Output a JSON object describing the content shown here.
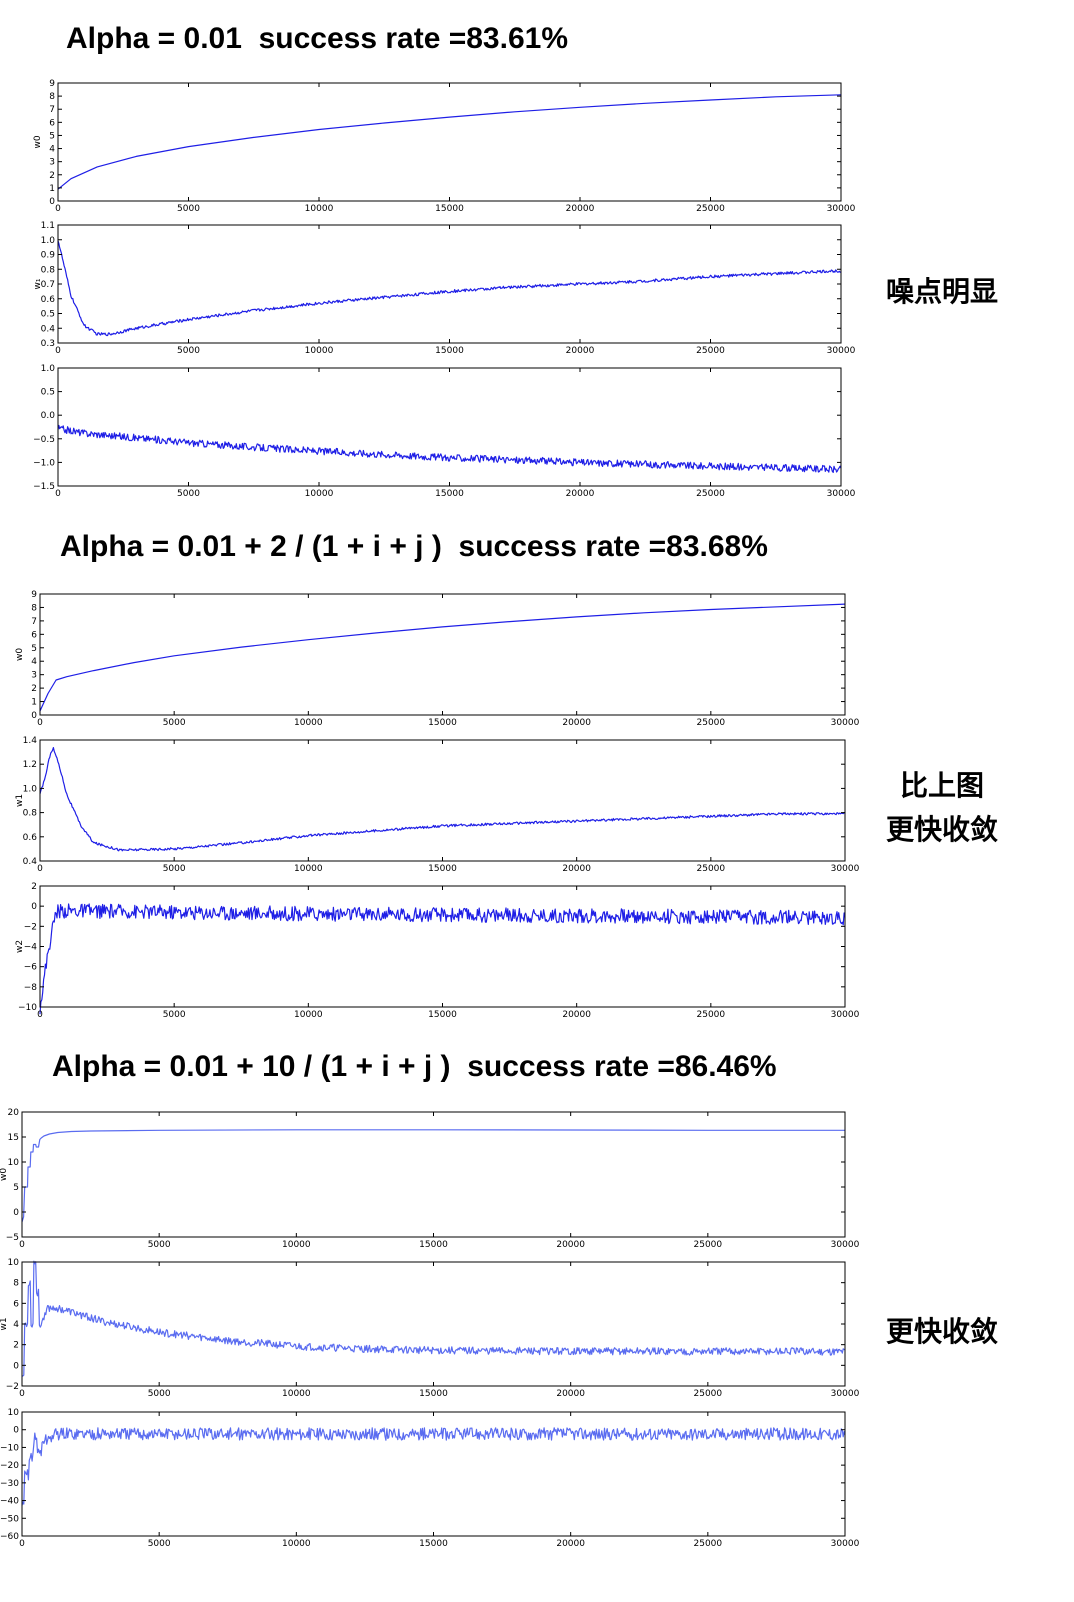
{
  "sections": [
    {
      "title": "Alpha = 0.01  success rate =83.61%"
    },
    {
      "title": "Alpha = 0.01 + 2 / (1 + i + j )  success rate =83.68%"
    },
    {
      "title": "Alpha = 0.01 + 10 / (1 + i + j )  success rate =86.46%"
    }
  ],
  "notes": {
    "n1": "噪点明显",
    "n2a": "比上图",
    "n2b": "更快收敛",
    "n3": "更快收敛"
  },
  "colors": {
    "line": "#1f1fe6",
    "line_light": "#5a6cf0"
  },
  "chart_data": [
    {
      "type": "line",
      "ylabel": "w0",
      "xlim": [
        0,
        30000
      ],
      "ylim": [
        0,
        9
      ],
      "xticks": [
        0,
        5000,
        10000,
        15000,
        20000,
        25000,
        30000
      ],
      "yticks": [
        0,
        1,
        2,
        3,
        4,
        5,
        6,
        7,
        8,
        9
      ],
      "ytick_labels": [
        "0",
        "1",
        "2",
        "3",
        "4",
        "5",
        "6",
        "7",
        "8",
        "9"
      ],
      "x": [
        0,
        500,
        1500,
        3000,
        5000,
        7500,
        10000,
        12500,
        15000,
        17500,
        20000,
        22500,
        25000,
        27500,
        30000
      ],
      "y": [
        0.9,
        1.7,
        2.6,
        3.4,
        4.15,
        4.85,
        5.45,
        5.95,
        6.4,
        6.8,
        7.15,
        7.45,
        7.7,
        7.95,
        8.1
      ],
      "noise": 0
    },
    {
      "type": "line",
      "ylabel": "w₁",
      "xlim": [
        0,
        30000
      ],
      "ylim": [
        0.3,
        1.1
      ],
      "xticks": [
        0,
        5000,
        10000,
        15000,
        20000,
        25000,
        30000
      ],
      "yticks": [
        0.3,
        0.4,
        0.5,
        0.6,
        0.7,
        0.8,
        0.9,
        1.0,
        1.1
      ],
      "ytick_labels": [
        "0.3",
        "0.4",
        "0.5",
        "0.6",
        "0.7",
        "0.8",
        "0.9",
        "1.0",
        "1.1"
      ],
      "x": [
        0,
        200,
        500,
        1000,
        1500,
        2000,
        3000,
        5000,
        7500,
        10000,
        12500,
        15000,
        17500,
        20000,
        22500,
        25000,
        27500,
        30000
      ],
      "y": [
        1.0,
        0.85,
        0.62,
        0.42,
        0.36,
        0.36,
        0.4,
        0.46,
        0.52,
        0.57,
        0.61,
        0.65,
        0.68,
        0.7,
        0.72,
        0.75,
        0.77,
        0.79
      ],
      "noise": 0.012
    },
    {
      "type": "line",
      "ylabel": "",
      "xlim": [
        0,
        30000
      ],
      "ylim": [
        -1.5,
        1.0
      ],
      "xticks": [
        0,
        5000,
        10000,
        15000,
        20000,
        25000,
        30000
      ],
      "yticks": [
        -1.5,
        -1.0,
        -0.5,
        0.0,
        0.5,
        1.0
      ],
      "ytick_labels": [
        "−1.5",
        "−1.0",
        "−0.5",
        "0.0",
        "0.5",
        "1.0"
      ],
      "x": [
        0,
        1000,
        3000,
        5000,
        7500,
        10000,
        12500,
        15000,
        17500,
        20000,
        22500,
        25000,
        27500,
        30000
      ],
      "y": [
        -0.28,
        -0.38,
        -0.48,
        -0.58,
        -0.68,
        -0.76,
        -0.83,
        -0.9,
        -0.95,
        -1.0,
        -1.04,
        -1.08,
        -1.11,
        -1.15
      ],
      "noise": 0.03
    },
    {
      "type": "line",
      "ylabel": "w0",
      "xlim": [
        0,
        30000
      ],
      "ylim": [
        0,
        9
      ],
      "xticks": [
        0,
        5000,
        10000,
        15000,
        20000,
        25000,
        30000
      ],
      "yticks": [
        0,
        1,
        2,
        3,
        4,
        5,
        6,
        7,
        8,
        9
      ],
      "ytick_labels": [
        "0",
        "1",
        "2",
        "3",
        "4",
        "5",
        "6",
        "7",
        "8",
        "9"
      ],
      "x": [
        0,
        300,
        600,
        1000,
        2000,
        3500,
        5000,
        7500,
        10000,
        12500,
        15000,
        17500,
        20000,
        22500,
        25000,
        27500,
        30000
      ],
      "y": [
        0.3,
        1.6,
        2.6,
        2.85,
        3.3,
        3.9,
        4.4,
        5.05,
        5.6,
        6.1,
        6.55,
        6.95,
        7.3,
        7.6,
        7.85,
        8.05,
        8.25
      ],
      "noise": 0
    },
    {
      "type": "line",
      "ylabel": "w1",
      "xlim": [
        0,
        30000
      ],
      "ylim": [
        0.4,
        1.4
      ],
      "xticks": [
        0,
        5000,
        10000,
        15000,
        20000,
        25000,
        30000
      ],
      "yticks": [
        0.4,
        0.6,
        0.8,
        1.0,
        1.2,
        1.4
      ],
      "ytick_labels": [
        "0.4",
        "0.6",
        "0.8",
        "1.0",
        "1.2",
        "1.4"
      ],
      "x": [
        0,
        200,
        400,
        500,
        700,
        1000,
        1500,
        2000,
        3000,
        5000,
        7500,
        10000,
        12500,
        15000,
        17500,
        20000,
        22500,
        25000,
        27500,
        30000
      ],
      "y": [
        0.95,
        1.1,
        1.3,
        1.33,
        1.2,
        0.95,
        0.7,
        0.55,
        0.49,
        0.5,
        0.55,
        0.61,
        0.65,
        0.69,
        0.71,
        0.73,
        0.75,
        0.77,
        0.79,
        0.79
      ],
      "noise": 0.01
    },
    {
      "type": "line",
      "ylabel": "w2",
      "xlim": [
        0,
        30000
      ],
      "ylim": [
        -10,
        2
      ],
      "xticks": [
        0,
        5000,
        10000,
        15000,
        20000,
        25000,
        30000
      ],
      "yticks": [
        -10,
        -8,
        -6,
        -4,
        -2,
        0,
        2
      ],
      "ytick_labels": [
        "−10",
        "−8",
        "−6",
        "−4",
        "−2",
        "0",
        "2"
      ],
      "x": [
        0,
        300,
        600,
        1000,
        5000,
        10000,
        15000,
        20000,
        25000,
        30000
      ],
      "y": [
        -10,
        -4.5,
        -0.5,
        -0.45,
        -0.6,
        -0.75,
        -0.85,
        -0.95,
        -1.05,
        -1.15
      ],
      "noise": 0.06
    },
    {
      "type": "line",
      "ylabel": "w0",
      "xlim": [
        0,
        30000
      ],
      "ylim": [
        -5,
        20
      ],
      "xticks": [
        0,
        5000,
        10000,
        15000,
        20000,
        25000,
        30000
      ],
      "yticks": [
        -5,
        0,
        5,
        10,
        15,
        20
      ],
      "ytick_labels": [
        "−5",
        "0",
        "5",
        "10",
        "15",
        "20"
      ],
      "x": [
        0,
        60,
        100,
        200,
        220,
        300,
        320,
        400,
        420,
        500,
        520,
        600,
        650,
        700,
        800,
        1000,
        1300,
        1800,
        2500,
        5000,
        10000,
        15000,
        20000,
        25000,
        30000
      ],
      "y": [
        -2,
        -1,
        5,
        5,
        9,
        9,
        12,
        12,
        13.5,
        13.5,
        13,
        13,
        14.5,
        14.8,
        15.2,
        15.6,
        15.9,
        16.1,
        16.2,
        16.35,
        16.45,
        16.45,
        16.4,
        16.35,
        16.35
      ],
      "noise": 0
    },
    {
      "type": "line",
      "ylabel": "w1",
      "xlim": [
        0,
        30000
      ],
      "ylim": [
        -2,
        10
      ],
      "xticks": [
        0,
        5000,
        10000,
        15000,
        20000,
        25000,
        30000
      ],
      "yticks": [
        -2,
        0,
        2,
        4,
        6,
        8,
        10
      ],
      "ytick_labels": [
        "−2",
        "0",
        "2",
        "4",
        "6",
        "8",
        "10"
      ],
      "x": [
        0,
        80,
        100,
        200,
        220,
        300,
        320,
        400,
        420,
        500,
        520,
        600,
        620,
        700,
        900,
        1200,
        2000,
        3000,
        5000,
        7500,
        10000,
        12500,
        15000,
        17500,
        20000,
        22500,
        25000,
        27500,
        30000
      ],
      "y": [
        -1,
        -1,
        4,
        4,
        8,
        8,
        4,
        4,
        10,
        10,
        7,
        7,
        4,
        4,
        5.5,
        5.6,
        5.0,
        4.2,
        3.2,
        2.4,
        1.85,
        1.6,
        1.45,
        1.4,
        1.38,
        1.36,
        1.35,
        1.35,
        1.35
      ],
      "noise": 0.03
    },
    {
      "type": "line",
      "ylabel": "",
      "xlim": [
        0,
        30000
      ],
      "ylim": [
        -60,
        10
      ],
      "xticks": [
        0,
        5000,
        10000,
        15000,
        20000,
        25000,
        30000
      ],
      "yticks": [
        -60,
        -50,
        -40,
        -30,
        -20,
        -10,
        0,
        10
      ],
      "ytick_labels": [
        "−60",
        "−50",
        "−40",
        "−30",
        "−20",
        "−10",
        "0",
        "10"
      ],
      "x": [
        0,
        80,
        100,
        250,
        270,
        400,
        420,
        550,
        570,
        700,
        720,
        900,
        1200,
        1600,
        2500,
        5000,
        10000,
        15000,
        20000,
        25000,
        30000
      ],
      "y": [
        -44,
        -44,
        -25,
        -25,
        -15,
        -15,
        -5,
        -5,
        -13,
        -13,
        -6,
        -6,
        -2.5,
        -2.2,
        -2.3,
        -2.4,
        -2.4,
        -2.4,
        -2.4,
        -2.4,
        -2.4
      ],
      "noise": 0.05
    }
  ]
}
